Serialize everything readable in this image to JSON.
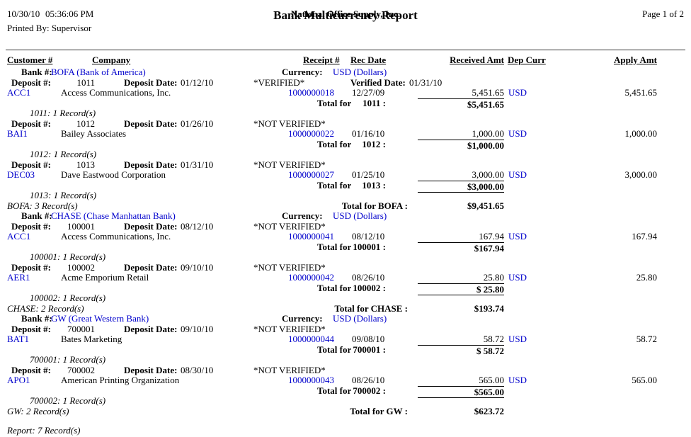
{
  "header": {
    "date": "10/30/10",
    "time": "05:36:06 PM",
    "printed_by": "Printed By: Supervisor",
    "company": "National Office Supply, Inc.",
    "title": "Bank Multicurrency Report",
    "page": "Page 1 of 2"
  },
  "columns": {
    "customer": "Customer #",
    "company": "Company",
    "receipt": "Receipt #",
    "rec_date": "Rec Date",
    "received_amt": "Received Amt",
    "dep_curr": "Dep Curr",
    "apply_amt": "Apply Amt"
  },
  "labels": {
    "bank_no": "Bank #:",
    "currency": "Currency:",
    "deposit_no": "Deposit #:",
    "deposit_date": "Deposit Date:",
    "verified_date": "Verified Date:",
    "total_for": "Total for"
  },
  "colors": {
    "link": "#0000CC"
  },
  "banks": [
    {
      "name_link": "BOFA (Bank of America)",
      "currency": "USD (Dollars)",
      "records": "BOFA: 3 Record(s)",
      "total_label": "Total for BOFA :",
      "total": "$9,451.65",
      "deposits": [
        {
          "number": "1011",
          "date": "01/12/10",
          "status": "*VERIFIED*",
          "verified_date": "01/31/10",
          "entry": {
            "customer": "ACC1",
            "company": "Access Communications, Inc.",
            "receipt": "1000000018",
            "rec_date": "12/27/09",
            "received": "5,451.65",
            "curr": "USD",
            "apply": "5,451.65"
          },
          "total_num": "1011 :",
          "total": "$5,451.65",
          "records": "1011: 1 Record(s)"
        },
        {
          "number": "1012",
          "date": "01/26/10",
          "status": "*NOT VERIFIED*",
          "entry": {
            "customer": "BAI1",
            "company": "Bailey Associates",
            "receipt": "1000000022",
            "rec_date": "01/16/10",
            "received": "1,000.00",
            "curr": "USD",
            "apply": "1,000.00"
          },
          "total_num": "1012 :",
          "total": "$1,000.00",
          "records": "1012: 1 Record(s)"
        },
        {
          "number": "1013",
          "date": "01/31/10",
          "status": "*NOT VERIFIED*",
          "entry": {
            "customer": "DEC03",
            "company": "Dave Eastwood Corporation",
            "receipt": "1000000027",
            "rec_date": "01/25/10",
            "received": "3,000.00",
            "curr": "USD",
            "apply": "3,000.00"
          },
          "total_num": "1013 :",
          "total": "$3,000.00",
          "records": "1013: 1 Record(s)"
        }
      ]
    },
    {
      "name_link": "CHASE (Chase Manhattan Bank)",
      "currency": "USD (Dollars)",
      "records": "CHASE: 2 Record(s)",
      "total_label": "Total for CHASE :",
      "total": "$193.74",
      "deposits": [
        {
          "number": "100001",
          "date": "08/12/10",
          "status": "*NOT VERIFIED*",
          "entry": {
            "customer": "ACC1",
            "company": "Access Communications, Inc.",
            "receipt": "1000000041",
            "rec_date": "08/12/10",
            "received": "167.94",
            "curr": "USD",
            "apply": "167.94"
          },
          "total_num": "100001 :",
          "total": "$167.94",
          "records": "100001: 1 Record(s)"
        },
        {
          "number": "100002",
          "date": "09/10/10",
          "status": "*NOT VERIFIED*",
          "entry": {
            "customer": "AER1",
            "company": "Acme Emporium Retail",
            "receipt": "1000000042",
            "rec_date": "08/26/10",
            "received": "25.80",
            "curr": "USD",
            "apply": "25.80"
          },
          "total_num": "100002 :",
          "total": "$ 25.80",
          "records": "100002: 1 Record(s)"
        }
      ]
    },
    {
      "name_link": "GW (Great Western Bank)",
      "currency": "USD (Dollars)",
      "records": "GW: 2 Record(s)",
      "total_label": "Total for GW :",
      "total": "$623.72",
      "deposits": [
        {
          "number": "700001",
          "date": "09/10/10",
          "status": "*NOT VERIFIED*",
          "entry": {
            "customer": "BAT1",
            "company": "Bates Marketing",
            "receipt": "1000000044",
            "rec_date": "09/08/10",
            "received": "58.72",
            "curr": "USD",
            "apply": "58.72"
          },
          "total_num": "700001 :",
          "total": "$ 58.72",
          "records": "700001: 1 Record(s)"
        },
        {
          "number": "700002",
          "date": "08/30/10",
          "status": "*NOT VERIFIED*",
          "entry": {
            "customer": "APO1",
            "company": "American Printing Organization",
            "receipt": "1000000043",
            "rec_date": "08/26/10",
            "received": "565.00",
            "curr": "USD",
            "apply": "565.00"
          },
          "total_num": "700002 :",
          "total": "$565.00",
          "records": "700002: 1 Record(s)"
        }
      ]
    }
  ],
  "report_records": "Report: 7 Record(s)"
}
